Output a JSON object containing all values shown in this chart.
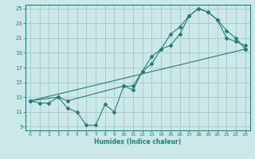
{
  "xlabel": "Humidex (Indice chaleur)",
  "bg_color": "#cce8e8",
  "grid_color": "#aacccc",
  "line_color": "#2a7a7a",
  "xlim": [
    -0.5,
    23.5
  ],
  "ylim": [
    8.5,
    25.5
  ],
  "xticks": [
    0,
    1,
    2,
    3,
    4,
    5,
    6,
    7,
    8,
    9,
    10,
    11,
    12,
    13,
    14,
    15,
    16,
    17,
    18,
    19,
    20,
    21,
    22,
    23
  ],
  "yticks": [
    9,
    11,
    13,
    15,
    17,
    19,
    21,
    23,
    25
  ],
  "line1_x": [
    0,
    1,
    2,
    3,
    4,
    5,
    6,
    7,
    8,
    9,
    10,
    11,
    12,
    13,
    14,
    15,
    16,
    17,
    18,
    19,
    20,
    21,
    22,
    23
  ],
  "line1_y": [
    12.5,
    12.2,
    12.2,
    13.0,
    11.5,
    11.0,
    9.2,
    9.2,
    12.0,
    11.0,
    14.5,
    14.0,
    16.5,
    17.5,
    19.5,
    20.0,
    21.5,
    24.0,
    25.0,
    24.5,
    23.5,
    21.0,
    20.5,
    20.0
  ],
  "line2_x": [
    0,
    3,
    4,
    10,
    11,
    12,
    13,
    14,
    15,
    16,
    17,
    18,
    19,
    20,
    21,
    22,
    23
  ],
  "line2_y": [
    12.5,
    13.0,
    12.5,
    14.5,
    14.5,
    16.5,
    18.5,
    19.5,
    21.5,
    22.5,
    24.0,
    25.0,
    24.5,
    23.5,
    22.0,
    21.0,
    19.5
  ],
  "line3_x": [
    0,
    23
  ],
  "line3_y": [
    12.5,
    19.5
  ]
}
